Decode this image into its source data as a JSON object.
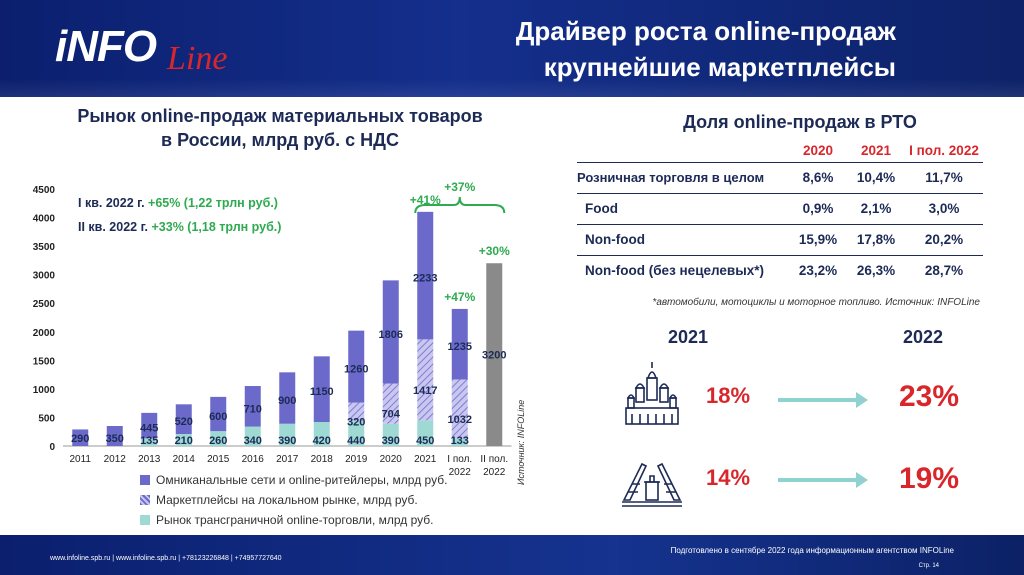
{
  "header": {
    "logo_main": "iNFO",
    "logo_sub": "Line",
    "title_line1": "Драйвер роста online-продаж",
    "title_line2": "крупнейшие маркетплейсы"
  },
  "left": {
    "title_line1": "Рынок online-продаж материальных товаров",
    "title_line2": "в России, млрд руб. с НДС",
    "ann1_prefix": "I кв. 2022 г. ",
    "ann1_value": "+65% (1,22 трлн руб.)",
    "ann2_prefix": "II кв. 2022 г. ",
    "ann2_value": "+33% (1,18 трлн руб.)",
    "source_vertical": "Источник: INFOLine"
  },
  "chart_data": {
    "type": "bar",
    "stacked": true,
    "categories": [
      "2011",
      "2012",
      "2013",
      "2014",
      "2015",
      "2016",
      "2017",
      "2018",
      "2019",
      "2020",
      "2021",
      "I пол. 2022",
      "II пол. 2022"
    ],
    "series": [
      {
        "name": "Рынок трансграничной online-торговли, млрд руб.",
        "color": "#9ed9d4",
        "values": [
          null,
          null,
          135,
          210,
          260,
          340,
          390,
          420,
          440,
          390,
          450,
          133,
          null
        ]
      },
      {
        "name": "Маркетплейсы на локальном рынке, млрд руб.",
        "color": "#a9a6e2",
        "pattern": "hatch",
        "values": [
          null,
          null,
          null,
          null,
          null,
          null,
          null,
          null,
          320,
          704,
          1417,
          1032,
          null
        ]
      },
      {
        "name": "Омниканальные сети и online-ритейлеры, млрд руб.",
        "color": "#6b6acb",
        "values": [
          290,
          350,
          445,
          520,
          600,
          710,
          900,
          1150,
          1260,
          1806,
          2233,
          1235,
          null
        ]
      }
    ],
    "forecast": {
      "category": "II пол. 2022",
      "value": 3200,
      "color": "#8a8a8a"
    },
    "growth_labels": [
      {
        "category": "2021",
        "text": "+41%"
      },
      {
        "category": "I пол. 2022",
        "text": "+47%"
      },
      {
        "category": "II пол. 2022",
        "text": "+30%"
      }
    ],
    "brace_label": "+37%",
    "ylim": [
      0,
      4500
    ],
    "yticks": [
      0,
      500,
      1000,
      1500,
      2000,
      2500,
      3000,
      3500,
      4000,
      4500
    ],
    "legend_placement": "bottom"
  },
  "right": {
    "title": "Доля online-продаж в РТО",
    "columns": [
      "2020",
      "2021",
      "I пол. 2022"
    ],
    "rows": [
      {
        "label": "Розничная торговля в целом",
        "values": [
          "8,6%",
          "10,4%",
          "11,7%"
        ]
      },
      {
        "label": "Food",
        "values": [
          "0,9%",
          "2,1%",
          "3,0%"
        ]
      },
      {
        "label": "Non-food",
        "values": [
          "15,9%",
          "17,8%",
          "20,2%"
        ]
      },
      {
        "label": "Non-food (без нецелевых*)",
        "values": [
          "23,2%",
          "26,3%",
          "28,7%"
        ]
      }
    ],
    "note": "*автомобили, мотоциклы и моторное топливо. Источник: INFOLine",
    "year_left": "2021",
    "year_right": "2022",
    "moscow_2021": "18%",
    "moscow_2022": "23%",
    "spb_2021": "14%",
    "spb_2022": "19%"
  },
  "footer": {
    "left": "www.infoline.spb.ru | www.infoline.spb.ru | +78123226848 | +74957727640",
    "right": "Подготовлено в сентябре 2022 года информационным агентством INFOLine",
    "page": "Стр. 14"
  }
}
